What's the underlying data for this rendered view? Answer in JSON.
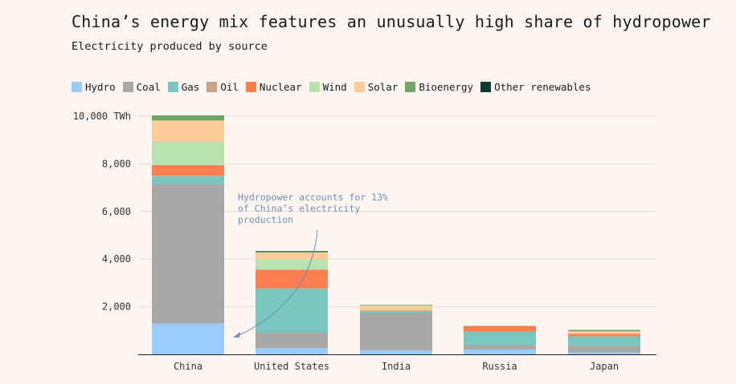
{
  "chart_data": {
    "type": "bar",
    "stacked": true,
    "title": "China’s energy mix features an unusually high share of hydropower",
    "subtitle": "Electricity produced by source",
    "categories": [
      "China",
      "United States",
      "India",
      "Russia",
      "Japan"
    ],
    "series": [
      {
        "name": "Hydro",
        "color": "#99ccff",
        "values": [
          1300,
          260,
          170,
          200,
          80
        ]
      },
      {
        "name": "Coal",
        "color": "#a8a8a8",
        "values": [
          5860,
          650,
          1580,
          200,
          280
        ]
      },
      {
        "name": "Gas",
        "color": "#79c7bf",
        "values": [
          330,
          1850,
          40,
          550,
          380
        ]
      },
      {
        "name": "Oil",
        "color": "#c9a384",
        "values": [
          10,
          20,
          10,
          10,
          40
        ]
      },
      {
        "name": "Nuclear",
        "color": "#ff7f50",
        "values": [
          450,
          780,
          40,
          220,
          80
        ]
      },
      {
        "name": "Wind",
        "color": "#b8e3b0",
        "values": [
          990,
          430,
          80,
          10,
          10
        ]
      },
      {
        "name": "Solar",
        "color": "#ffcc99",
        "values": [
          880,
          280,
          130,
          10,
          100
        ]
      },
      {
        "name": "Bioenergy",
        "color": "#6fa566",
        "values": [
          200,
          50,
          30,
          10,
          40
        ]
      },
      {
        "name": "Other renewables",
        "color": "#0b3d2e",
        "values": [
          10,
          20,
          0,
          0,
          10
        ]
      }
    ],
    "ylim": [
      0,
      10000
    ],
    "y_ticks": [
      {
        "value": 2000,
        "label": "2,000"
      },
      {
        "value": 4000,
        "label": "4,000"
      },
      {
        "value": 6000,
        "label": "6,000"
      },
      {
        "value": 8000,
        "label": "8,000"
      },
      {
        "value": 10000,
        "label": "10,000 TWh"
      }
    ],
    "grid": true,
    "legend_position": "top-left",
    "annotation": {
      "lines": [
        "Hydropower accounts for 13%",
        "of China’s electricity",
        "production"
      ],
      "color": "#6e8fb8"
    }
  }
}
